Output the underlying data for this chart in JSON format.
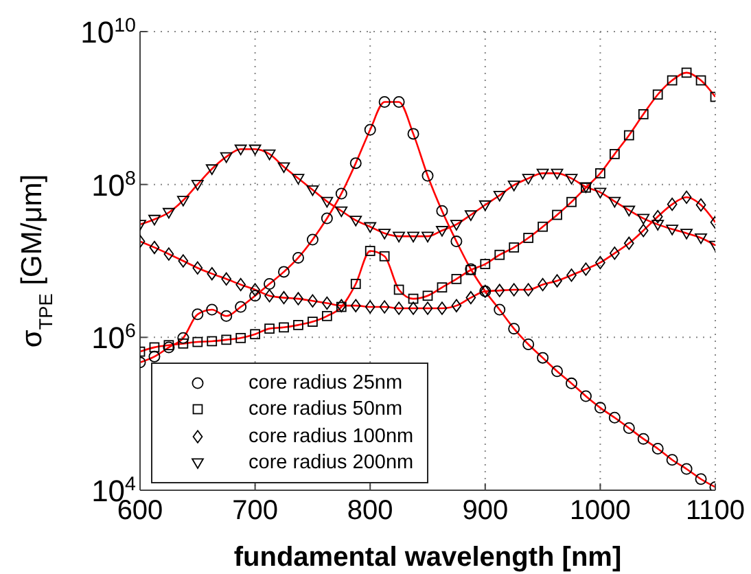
{
  "chart_data": {
    "type": "line",
    "xlabel": "fundamental wavelength [nm]",
    "ylabel": "σ$_{TPE}$ [GM/μm]",
    "x": [
      600,
      612.5,
      625,
      637.5,
      650,
      662.5,
      675,
      687.5,
      700,
      712.5,
      725,
      737.5,
      750,
      762.5,
      775,
      787.5,
      800,
      812.5,
      825,
      837.5,
      850,
      862.5,
      875,
      887.5,
      900,
      912.5,
      925,
      937.5,
      950,
      962.5,
      975,
      987.5,
      1000,
      1012.5,
      1025,
      1037.5,
      1050,
      1062.5,
      1075,
      1087.5,
      1100
    ],
    "series": [
      {
        "color": "#ff0000",
        "line_style": "solid",
        "values": [
          470000,
          560000,
          740000,
          980000,
          2000000,
          2300000,
          1900000,
          2500000,
          3500000,
          5000000,
          7200000,
          11000000,
          19000000,
          36000000,
          76000000,
          190000000,
          520000000,
          1200000000,
          1200000000,
          460000000,
          130000000,
          45000000,
          18000000,
          7800000,
          4000000,
          2300000,
          1300000,
          810000,
          540000,
          360000,
          250000,
          170000,
          120000,
          89000,
          65000,
          47000,
          35000,
          25000,
          19000,
          14000,
          11000
        ]
      },
      {
        "color": "#ff0000",
        "line_style": "solid",
        "values": [
          650000,
          740000,
          790000,
          830000,
          870000,
          890000,
          930000,
          980000,
          1100000,
          1300000,
          1350000,
          1450000,
          1600000,
          1900000,
          2500000,
          5000000,
          13500000,
          11500000,
          4200000,
          3200000,
          3500000,
          4500000,
          5800000,
          7600000,
          9100000,
          12000000,
          15000000,
          20000000,
          28000000,
          40000000,
          59000000,
          91000000,
          140000000,
          250000000,
          440000000,
          830000000,
          1500000000,
          2300000000,
          2900000000,
          2300000000,
          1400000000
        ]
      },
      {
        "color": "#ff0000",
        "line_style": "solid",
        "values": [
          18000000,
          15000000,
          12300000,
          10000000,
          8100000,
          6800000,
          5800000,
          4900000,
          4200000,
          3500000,
          3300000,
          3200000,
          3000000,
          2800000,
          2600000,
          2600000,
          2500000,
          2500000,
          2400000,
          2400000,
          2400000,
          2400000,
          2600000,
          3300000,
          4000000,
          4100000,
          4200000,
          4200000,
          4900000,
          5500000,
          6500000,
          7800000,
          9500000,
          12600000,
          17000000,
          25000000,
          38000000,
          55000000,
          68000000,
          54000000,
          32000000
        ]
      },
      {
        "color": "#ff0000",
        "line_style": "solid",
        "values": [
          30000000,
          35000000,
          43000000,
          62000000,
          100000000,
          160000000,
          230000000,
          290000000,
          290000000,
          250000000,
          170000000,
          120000000,
          85000000,
          60000000,
          45000000,
          34000000,
          28000000,
          23000000,
          21000000,
          21000000,
          21000000,
          25000000,
          30000000,
          40000000,
          54000000,
          72000000,
          98000000,
          120000000,
          140000000,
          140000000,
          120000000,
          93000000,
          79000000,
          60000000,
          46000000,
          36000000,
          30000000,
          26000000,
          23000000,
          20000000,
          16000000
        ]
      },
      {
        "type": "scatter",
        "name": "core radius 25nm",
        "color": "#000000",
        "marker": "circle",
        "values": [
          470000,
          560000,
          740000,
          980000,
          2000000,
          2300000,
          1900000,
          2500000,
          3500000,
          5000000,
          7200000,
          11000000,
          19000000,
          36000000,
          76000000,
          190000000,
          520000000,
          1200000000,
          1200000000,
          460000000,
          130000000,
          45000000,
          18000000,
          7800000,
          4000000,
          2300000,
          1300000,
          810000,
          540000,
          360000,
          250000,
          170000,
          120000,
          89000,
          65000,
          47000,
          35000,
          25000,
          19000,
          14000,
          11000
        ]
      },
      {
        "type": "scatter",
        "name": "core radius 50nm",
        "color": "#000000",
        "marker": "square",
        "values": [
          650000,
          740000,
          790000,
          830000,
          870000,
          890000,
          930000,
          980000,
          1100000,
          1300000,
          1350000,
          1450000,
          1600000,
          1900000,
          2500000,
          5000000,
          13500000,
          11500000,
          4200000,
          3200000,
          3500000,
          4500000,
          5800000,
          7600000,
          9100000,
          12000000,
          15000000,
          20000000,
          28000000,
          40000000,
          59000000,
          91000000,
          140000000,
          250000000,
          440000000,
          830000000,
          1500000000,
          2300000000,
          2900000000,
          2300000000,
          1400000000
        ]
      },
      {
        "type": "scatter",
        "name": "core radius 100nm",
        "color": "#000000",
        "marker": "diamond",
        "values": [
          18000000,
          15000000,
          12300000,
          10000000,
          8100000,
          6800000,
          5800000,
          4900000,
          4200000,
          3500000,
          3300000,
          3200000,
          3000000,
          2800000,
          2600000,
          2600000,
          2500000,
          2500000,
          2400000,
          2400000,
          2400000,
          2400000,
          2600000,
          3300000,
          4000000,
          4100000,
          4200000,
          4200000,
          4900000,
          5500000,
          6500000,
          7800000,
          9500000,
          12600000,
          17000000,
          25000000,
          38000000,
          55000000,
          68000000,
          54000000,
          32000000
        ]
      },
      {
        "type": "scatter",
        "name": "core radius 200nm",
        "color": "#000000",
        "marker": "triangle",
        "values": [
          30000000,
          35000000,
          43000000,
          62000000,
          100000000,
          160000000,
          230000000,
          290000000,
          290000000,
          250000000,
          170000000,
          120000000,
          85000000,
          60000000,
          45000000,
          34000000,
          28000000,
          23000000,
          21000000,
          21000000,
          21000000,
          25000000,
          30000000,
          40000000,
          54000000,
          72000000,
          98000000,
          120000000,
          140000000,
          140000000,
          120000000,
          93000000,
          79000000,
          60000000,
          46000000,
          36000000,
          30000000,
          26000000,
          23000000,
          20000000,
          16000000
        ]
      }
    ],
    "xlim": [
      600,
      1100
    ],
    "xticks": [
      600,
      700,
      800,
      900,
      1000,
      1100
    ],
    "log": "y",
    "ylim": [
      10000,
      10000000000
    ],
    "yticks": [
      {
        "value": 10000,
        "label": "10$^{4}$"
      },
      {
        "value": 1000000,
        "label": "10$^{6}$"
      },
      {
        "value": 100000000,
        "label": "10$^{8}$"
      },
      {
        "value": 10000000000,
        "label": "10$^{10}$"
      }
    ],
    "grid": true,
    "legend": "bottom left"
  }
}
